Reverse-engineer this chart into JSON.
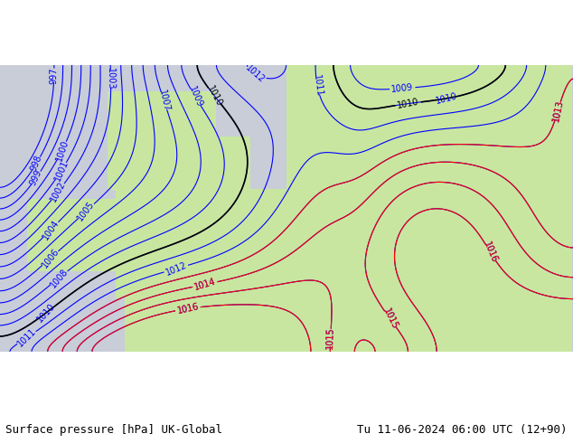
{
  "title_left": "Surface pressure [hPa] UK-Global",
  "title_right": "Tu 11-06-2024 06:00 UTC (12+90)",
  "bg_color": "#c8e6a0",
  "land_color": "#c8e6a0",
  "sea_color": "#d0d0d0",
  "fig_width": 6.34,
  "fig_height": 4.9,
  "dpi": 100,
  "bottom_bar_color": "#c8e6a0",
  "bottom_bar_height": 0.06,
  "title_fontsize": 9,
  "contour_fontsize": 7
}
